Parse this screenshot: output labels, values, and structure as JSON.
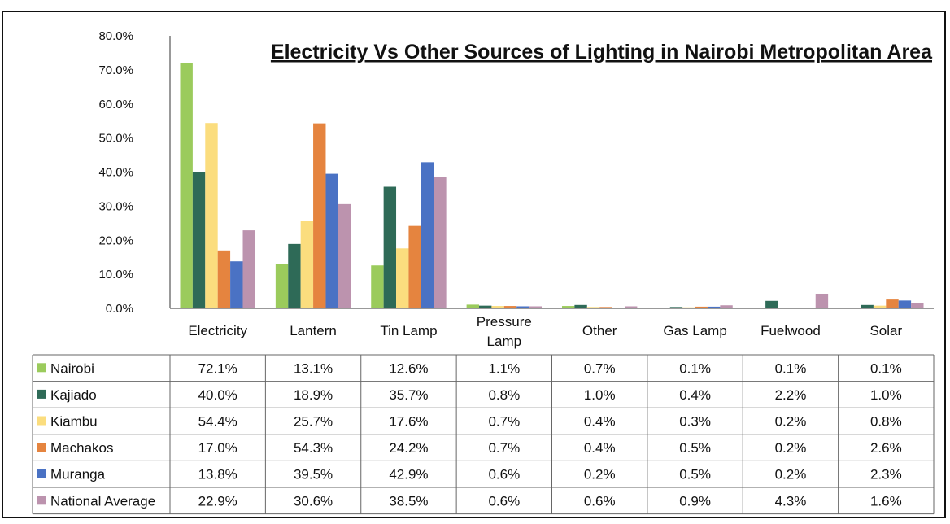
{
  "chart_data": {
    "type": "bar",
    "title": "Electricity Vs Other Sources of Lighting in Nairobi Metropolitan Area",
    "xlabel": "",
    "ylabel": "",
    "ylim": [
      0,
      80
    ],
    "y_ticks": [
      "0.0%",
      "10.0%",
      "20.0%",
      "30.0%",
      "40.0%",
      "50.0%",
      "60.0%",
      "70.0%",
      "80.0%"
    ],
    "categories": [
      "Electricity",
      "Lantern",
      "Tin Lamp",
      "Pressure Lamp",
      "Other",
      "Gas Lamp",
      "Fuelwood",
      "Solar"
    ],
    "series": [
      {
        "name": "Nairobi",
        "color": "#9BCB5C",
        "values": [
          72.1,
          13.1,
          12.6,
          1.1,
          0.7,
          0.1,
          0.1,
          0.1
        ],
        "labels": [
          "72.1%",
          "13.1%",
          "12.6%",
          "1.1%",
          "0.7%",
          "0.1%",
          "0.1%",
          "0.1%"
        ]
      },
      {
        "name": "Kajiado",
        "color": "#2E6A57",
        "values": [
          40.0,
          18.9,
          35.7,
          0.8,
          1.0,
          0.4,
          2.2,
          1.0
        ],
        "labels": [
          "40.0%",
          "18.9%",
          "35.7%",
          "0.8%",
          "1.0%",
          "0.4%",
          "2.2%",
          "1.0%"
        ]
      },
      {
        "name": "Kiambu",
        "color": "#FBDD7E",
        "values": [
          54.4,
          25.7,
          17.6,
          0.7,
          0.4,
          0.3,
          0.2,
          0.8
        ],
        "labels": [
          "54.4%",
          "25.7%",
          "17.6%",
          "0.7%",
          "0.4%",
          "0.3%",
          "0.2%",
          "0.8%"
        ]
      },
      {
        "name": "Machakos",
        "color": "#E5843F",
        "values": [
          17.0,
          54.3,
          24.2,
          0.7,
          0.4,
          0.5,
          0.2,
          2.6
        ],
        "labels": [
          "17.0%",
          "54.3%",
          "24.2%",
          "0.7%",
          "0.4%",
          "0.5%",
          "0.2%",
          "2.6%"
        ]
      },
      {
        "name": "Muranga",
        "color": "#4A72C4",
        "values": [
          13.8,
          39.5,
          42.9,
          0.6,
          0.2,
          0.5,
          0.2,
          2.3
        ],
        "labels": [
          "13.8%",
          "39.5%",
          "42.9%",
          "0.6%",
          "0.2%",
          "0.5%",
          "0.2%",
          "2.3%"
        ]
      },
      {
        "name": "National Average",
        "color": "#BC93AE",
        "values": [
          22.9,
          30.6,
          38.5,
          0.6,
          0.6,
          0.9,
          4.3,
          1.6
        ],
        "labels": [
          "22.9%",
          "30.6%",
          "38.5%",
          "0.6%",
          "0.6%",
          "0.9%",
          "4.3%",
          "1.6%"
        ]
      }
    ],
    "grid": false,
    "legend": "data-table-left"
  }
}
